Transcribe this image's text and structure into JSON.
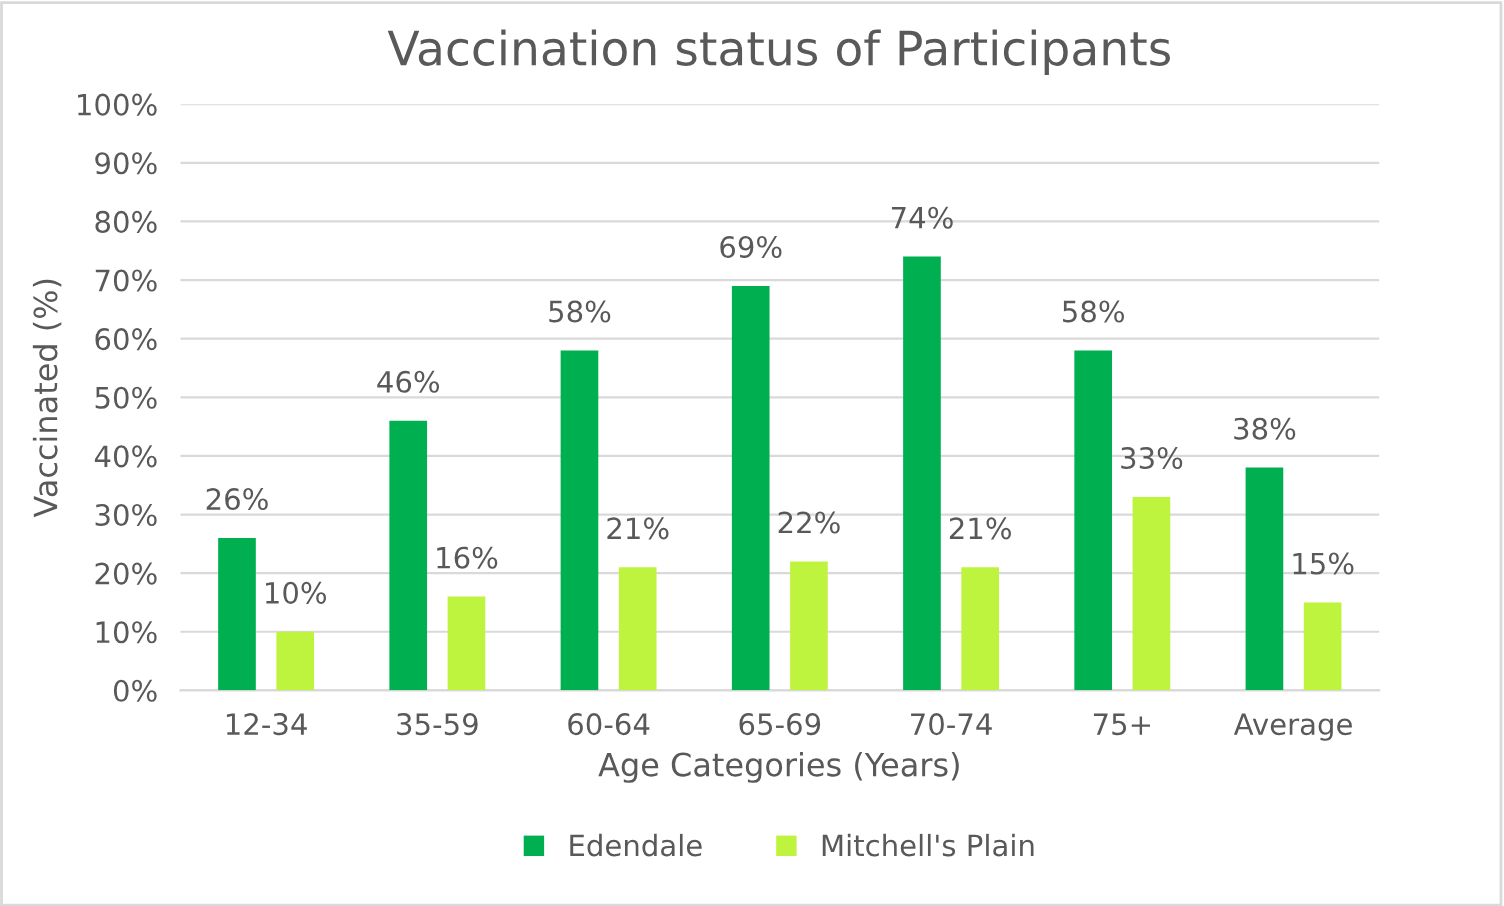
{
  "chart_data": {
    "type": "bar",
    "title": "Vaccination status of Participants",
    "xlabel": "Age Categories (Years)",
    "ylabel": "Vaccinated (%)",
    "categories": [
      "12-34",
      "35-59",
      "60-64",
      "65-69",
      "70-74",
      "75+",
      "Average"
    ],
    "series": [
      {
        "name": "Edendale",
        "color": "#00b050",
        "values": [
          26,
          46,
          58,
          69,
          74,
          58,
          38
        ],
        "value_labels": [
          "26%",
          "46%",
          "58%",
          "69%",
          "74%",
          "58%",
          "38%"
        ]
      },
      {
        "name": "Mitchell's Plain",
        "color": "#bef43e",
        "values": [
          10,
          16,
          21,
          22,
          21,
          33,
          15
        ],
        "value_labels": [
          "10%",
          "16%",
          "21%",
          "22%",
          "21%",
          "33%",
          "15%"
        ]
      }
    ],
    "ylim": [
      0,
      100
    ],
    "yticks": [
      {
        "value": 0,
        "label": "0%"
      },
      {
        "value": 10,
        "label": "10%"
      },
      {
        "value": 20,
        "label": "20%"
      },
      {
        "value": 30,
        "label": "30%"
      },
      {
        "value": 40,
        "label": "40%"
      },
      {
        "value": 50,
        "label": "50%"
      },
      {
        "value": 60,
        "label": "60%"
      },
      {
        "value": 70,
        "label": "70%"
      },
      {
        "value": 80,
        "label": "80%"
      },
      {
        "value": 90,
        "label": "90%"
      },
      {
        "value": 100,
        "label": "100%"
      }
    ],
    "grid": "y",
    "legend": "bottom"
  }
}
